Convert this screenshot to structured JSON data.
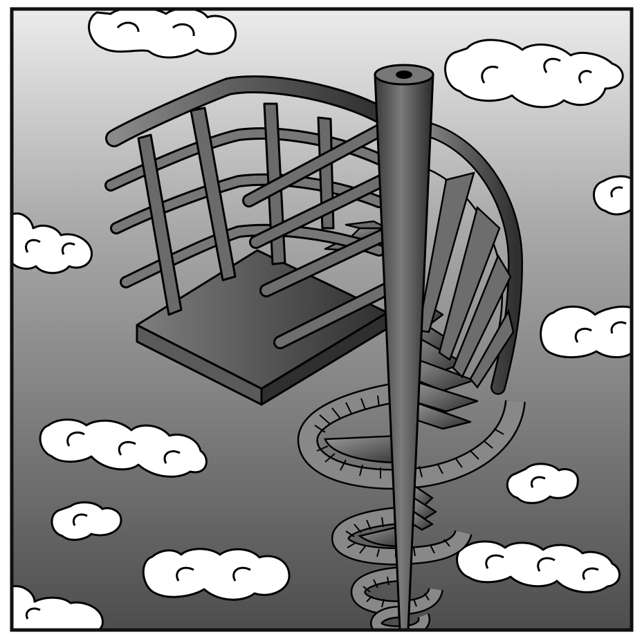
{
  "illustration": {
    "subject": "spiral-staircase-in-sky",
    "colors": {
      "frame": "#111111",
      "sky_top": "#e8e8e8",
      "sky_bottom": "#4a4a4a",
      "cloud_fill": "#ffffff",
      "metal_light": "#9a9a9a",
      "metal_mid": "#6a6a6a",
      "metal_dark": "#2e2e2e",
      "outline": "#000000"
    }
  }
}
